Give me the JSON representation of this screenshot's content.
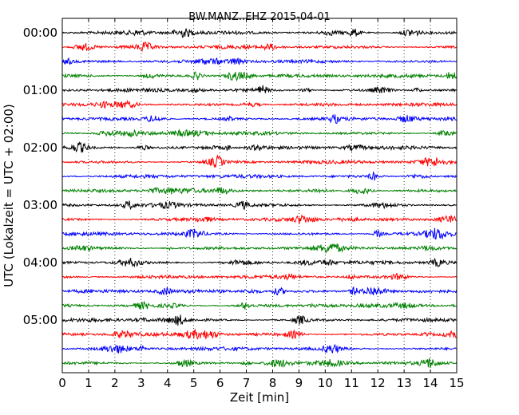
{
  "chart_data": {
    "type": "line",
    "title": "BW.MANZ..EHZ 2015-04-01",
    "xlabel": "Zeit  [min]",
    "ylabel": "UTC (Lokalzeit = UTC + 02:00)",
    "xlim": [
      0,
      15
    ],
    "x_ticks": [
      "0",
      "1",
      "2",
      "3",
      "4",
      "5",
      "6",
      "7",
      "8",
      "9",
      "10",
      "11",
      "12",
      "13",
      "14",
      "15"
    ],
    "y_tick_labels": [
      "00:00",
      "01:00",
      "02:00",
      "03:00",
      "04:00",
      "05:00"
    ],
    "y_tick_rows": [
      0,
      4,
      8,
      12,
      16,
      20
    ],
    "row_count": 24,
    "minutes_per_row": 15,
    "color_cycle": [
      "#000000",
      "#ff0000",
      "#0000ff",
      "#008000"
    ],
    "grid": "vertical dotted lines at each minute"
  }
}
